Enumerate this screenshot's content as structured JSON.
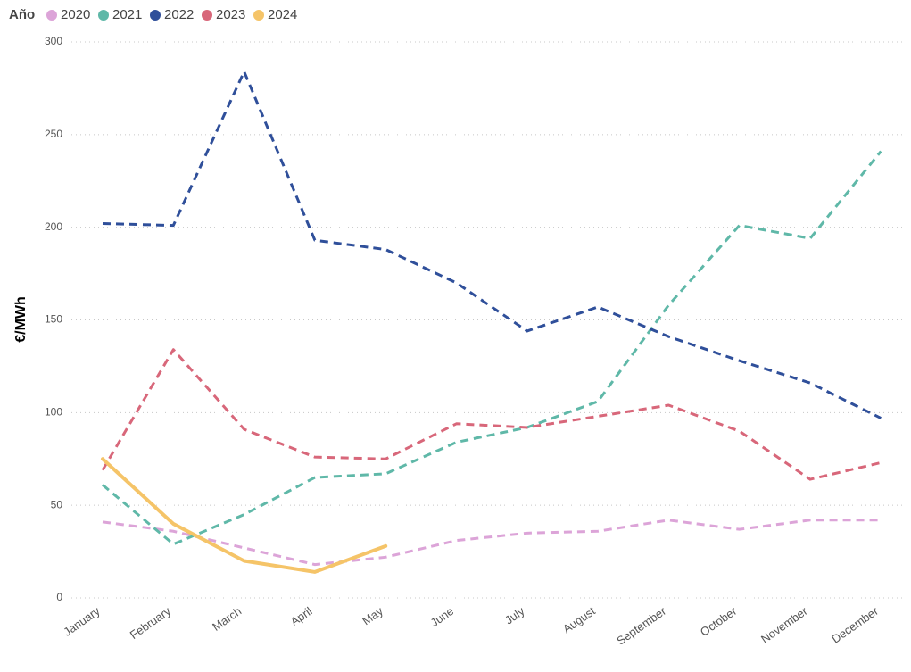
{
  "chart_data": {
    "type": "line",
    "legend_title": "Año",
    "y_label": "€/MWh",
    "categories": [
      "January",
      "February",
      "March",
      "April",
      "May",
      "June",
      "July",
      "August",
      "September",
      "October",
      "November",
      "December"
    ],
    "series": [
      {
        "name": "2020",
        "color": "#dca4d8",
        "dashed": true,
        "values": [
          41,
          36,
          27,
          18,
          22,
          31,
          35,
          36,
          42,
          37,
          42,
          42
        ]
      },
      {
        "name": "2021",
        "color": "#5fb8a8",
        "dashed": true,
        "values": [
          61,
          29,
          45,
          65,
          67,
          84,
          92,
          106,
          158,
          201,
          194,
          241
        ]
      },
      {
        "name": "2022",
        "color": "#2f4f9a",
        "dashed": true,
        "values": [
          202,
          201,
          284,
          193,
          188,
          170,
          144,
          157,
          141,
          128,
          116,
          97
        ]
      },
      {
        "name": "2023",
        "color": "#d8677a",
        "dashed": true,
        "values": [
          69,
          134,
          91,
          76,
          75,
          94,
          92,
          98,
          104,
          90,
          64,
          73
        ]
      },
      {
        "name": "2024",
        "color": "#f5c468",
        "dashed": false,
        "values": [
          75,
          40,
          20,
          14,
          28,
          null,
          null,
          null,
          null,
          null,
          null,
          null
        ]
      }
    ],
    "ylim": [
      0,
      300
    ],
    "yticks": [
      0,
      50,
      100,
      150,
      200,
      250,
      300
    ],
    "grid": true
  }
}
